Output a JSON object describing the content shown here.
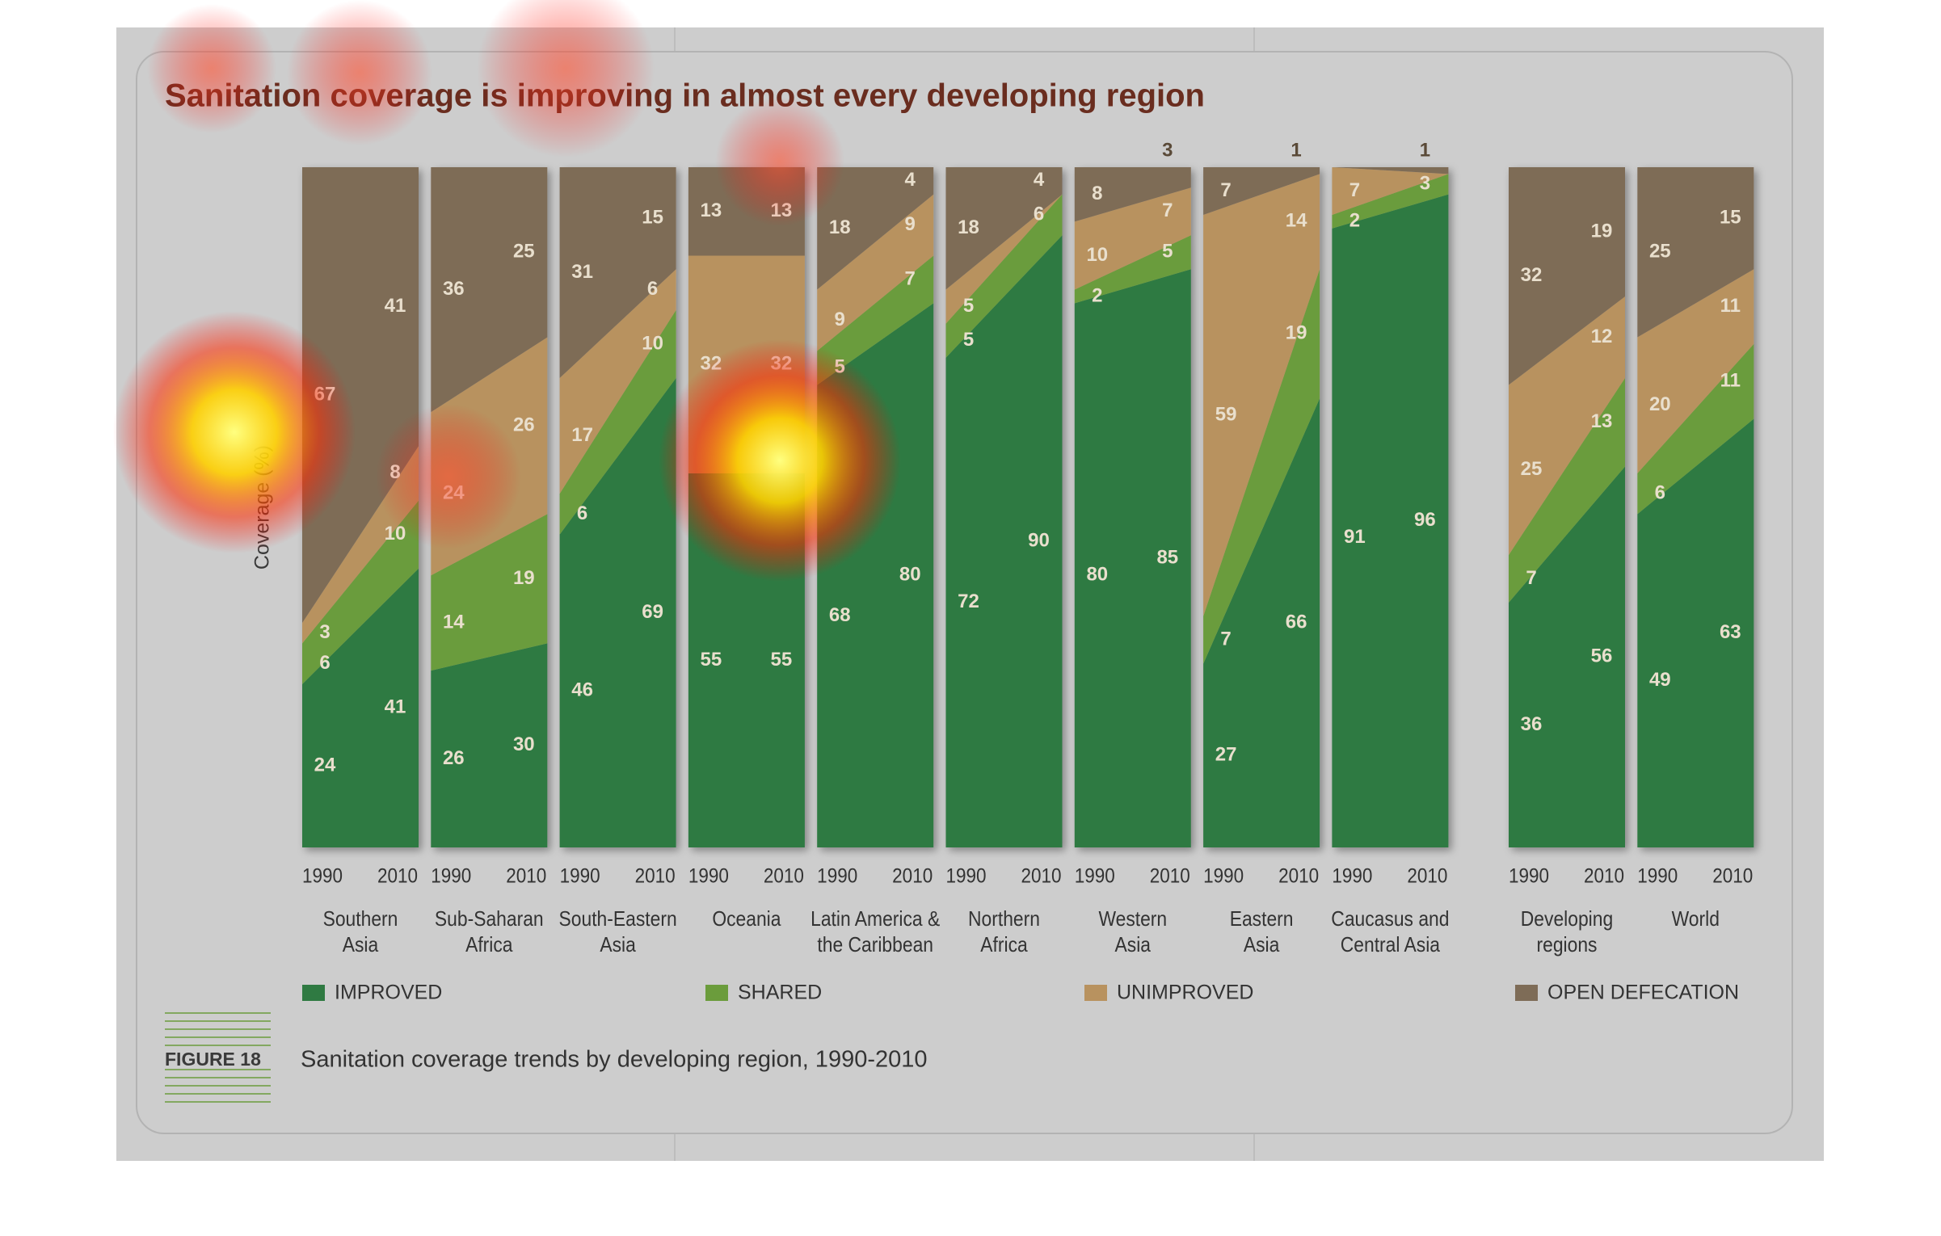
{
  "chart_data": {
    "type": "area",
    "title": "Sanitation coverage is improving in almost every developing region",
    "y_label": "Coverage (%)",
    "ylim": [
      0,
      100
    ],
    "years": [
      "1990",
      "2010"
    ],
    "categories": [
      [
        "Southern",
        "Asia"
      ],
      [
        "Sub-Saharan",
        "Africa"
      ],
      [
        "South-Eastern",
        "Asia"
      ],
      [
        "Oceania"
      ],
      [
        "Latin America &",
        "the Caribbean"
      ],
      [
        "Northern",
        "Africa"
      ],
      [
        "Western",
        "Asia"
      ],
      [
        "Eastern",
        "Asia"
      ],
      [
        "Caucasus and",
        "Central Asia"
      ],
      [
        "Developing",
        "regions"
      ],
      [
        "World"
      ]
    ],
    "series": [
      {
        "name": "IMPROVED",
        "color": "#2f7a42",
        "values": [
          [
            24,
            41
          ],
          [
            26,
            30
          ],
          [
            46,
            69
          ],
          [
            55,
            55
          ],
          [
            68,
            80
          ],
          [
            72,
            90
          ],
          [
            80,
            85
          ],
          [
            27,
            66
          ],
          [
            91,
            96
          ],
          [
            36,
            56
          ],
          [
            49,
            63
          ]
        ]
      },
      {
        "name": "SHARED",
        "color": "#6b9c3c",
        "values": [
          [
            6,
            10
          ],
          [
            14,
            19
          ],
          [
            6,
            10
          ],
          [
            0,
            0
          ],
          [
            5,
            7
          ],
          [
            5,
            6
          ],
          [
            2,
            5
          ],
          [
            7,
            19
          ],
          [
            2,
            3
          ],
          [
            7,
            13
          ],
          [
            6,
            11
          ]
        ]
      },
      {
        "name": "UNIMPROVED",
        "color": "#b8925f",
        "values": [
          [
            3,
            8
          ],
          [
            24,
            26
          ],
          [
            17,
            6
          ],
          [
            32,
            32
          ],
          [
            9,
            9
          ],
          [
            5,
            0
          ],
          [
            10,
            7
          ],
          [
            59,
            14
          ],
          [
            7,
            0
          ],
          [
            25,
            12
          ],
          [
            20,
            11
          ]
        ]
      },
      {
        "name": "OPEN DEFECATION",
        "color": "#7e6c57",
        "values": [
          [
            67,
            41
          ],
          [
            36,
            25
          ],
          [
            31,
            15
          ],
          [
            13,
            13
          ],
          [
            18,
            4
          ],
          [
            18,
            4
          ],
          [
            8,
            3
          ],
          [
            7,
            1
          ],
          [
            0,
            1
          ],
          [
            32,
            19
          ],
          [
            25,
            15
          ]
        ]
      }
    ],
    "figure_label": "FIGURE 18",
    "caption": "Sanitation coverage trends by developing region, 1990-2010"
  }
}
